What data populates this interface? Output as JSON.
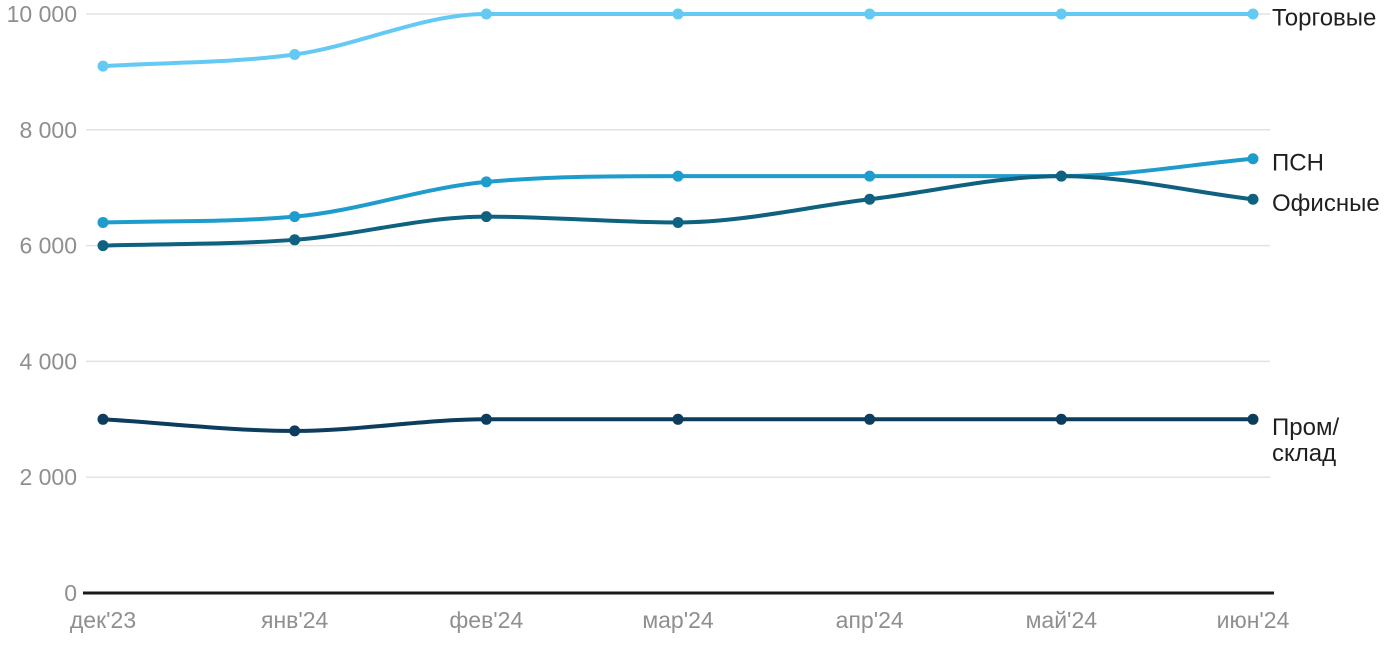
{
  "chart_data": {
    "type": "line",
    "title": "",
    "xlabel": "",
    "ylabel": "",
    "categories": [
      "дек'23",
      "янв'24",
      "фев'24",
      "мар'24",
      "апр'24",
      "май'24",
      "июн'24"
    ],
    "series": [
      {
        "name": "Торговые",
        "label_lines": [
          "Торговые"
        ],
        "color": "#64CAF3",
        "values": [
          9100,
          9300,
          10000,
          10000,
          10000,
          10000,
          10000
        ]
      },
      {
        "name": "ПСН",
        "label_lines": [
          "ПСН"
        ],
        "color": "#1E9CCB",
        "values": [
          6400,
          6500,
          7100,
          7200,
          7200,
          7200,
          7500
        ]
      },
      {
        "name": "Офисные",
        "label_lines": [
          "Офисные"
        ],
        "color": "#0F6180",
        "values": [
          6000,
          6100,
          6500,
          6400,
          6800,
          7200,
          6800
        ]
      },
      {
        "name": "Пром/склад",
        "label_lines": [
          "Пром/",
          "склад"
        ],
        "color": "#0C3C5E",
        "values": [
          3000,
          2800,
          3000,
          3000,
          3000,
          3000,
          3000
        ]
      }
    ],
    "ylim": [
      0,
      10000
    ],
    "yticks": [
      {
        "value": 0,
        "label": "0"
      },
      {
        "value": 2000,
        "label": "2 000"
      },
      {
        "value": 4000,
        "label": "4 000"
      },
      {
        "value": 6000,
        "label": "6 000"
      },
      {
        "value": 8000,
        "label": "8 000"
      },
      {
        "value": 10000,
        "label": "10 000"
      }
    ],
    "grid": true,
    "legend_position": "right-of-line-end"
  },
  "colors": {
    "background": "#FFFFFF",
    "grid": "#E2E2E2",
    "axis": "#1A1A1A",
    "tick_label": "#8F8F8F",
    "series_label": "#1F1F1F"
  }
}
